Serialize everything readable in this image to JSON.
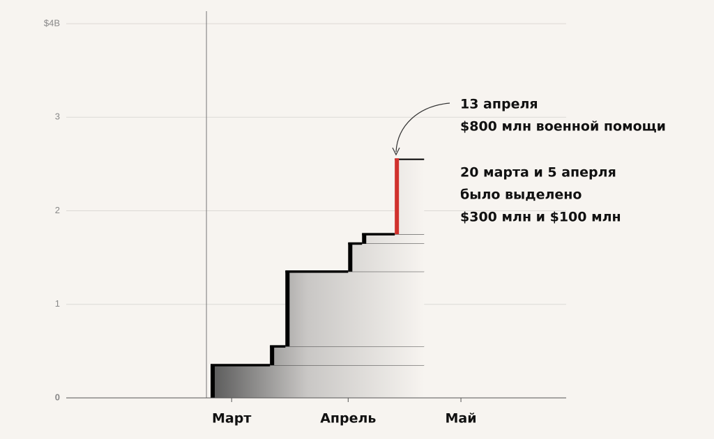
{
  "chart_data": {
    "type": "step",
    "x": [
      54.4,
      70.2,
      74.3,
      91,
      94.7,
      103.4
    ],
    "values": [
      0.35,
      0.2,
      0.8,
      0.3,
      0.1,
      0.8
    ],
    "colors": [
      "#000000",
      "#000000",
      "#000000",
      "#000000",
      "#000000",
      "#d0312d"
    ],
    "end_x": 111.2,
    "vline_x": 53.3,
    "xlim": [
      16,
      149
    ],
    "xticks": [
      {
        "value": 60,
        "label": "Март"
      },
      {
        "value": 91,
        "label": "Апрель"
      },
      {
        "value": 121,
        "label": "Май"
      }
    ],
    "ylim": [
      0,
      4
    ],
    "yticks": [
      0,
      1,
      2,
      3,
      {
        "value": 4,
        "label": "$4B"
      }
    ],
    "grid": true,
    "annotations": [
      "13 апреля",
      "$800 млн военной помощи",
      "20 марта и 5 аперля",
      "было выделено",
      "$300 млн и $100 млн"
    ]
  }
}
